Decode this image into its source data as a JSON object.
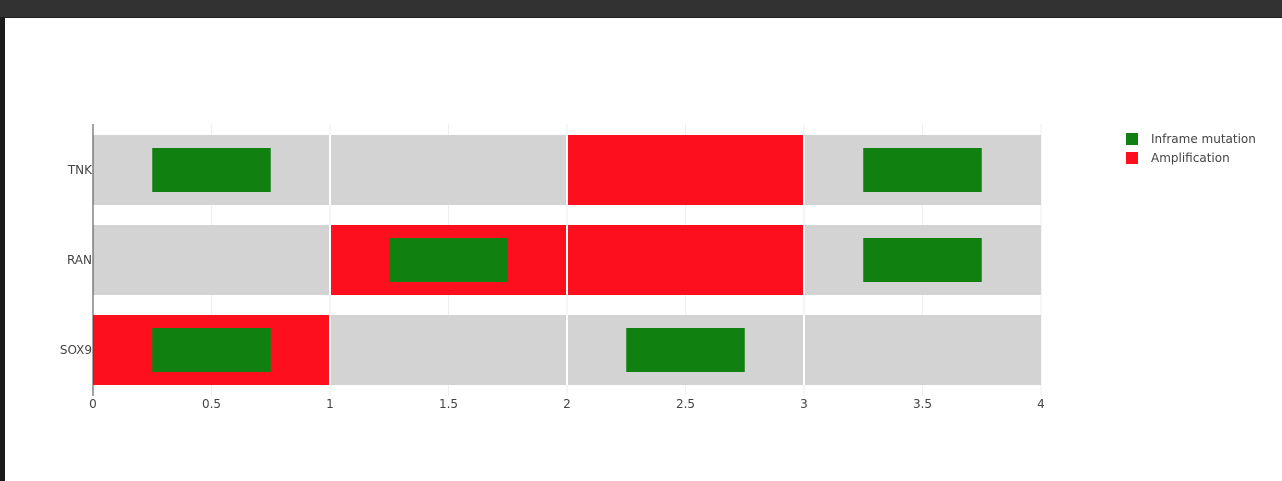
{
  "chart_data": {
    "type": "bar",
    "orientation": "horizontal",
    "title": "",
    "xlabel": "",
    "ylabel": "",
    "xlim": [
      0,
      4
    ],
    "x_ticks": [
      "0",
      "0.5",
      "1",
      "1.5",
      "2",
      "2.5",
      "3",
      "3.5",
      "4"
    ],
    "x_tick_values": [
      0,
      0.5,
      1,
      1.5,
      2,
      2.5,
      3,
      3.5,
      4
    ],
    "categories": [
      "TNK",
      "RAN",
      "SOX9"
    ],
    "sample_count": 4,
    "background_color": "#d3d3d3",
    "legend_position": "top-right",
    "grid": true,
    "series": [
      {
        "name": "Inframe mutation",
        "color": "#108010",
        "segments": [
          {
            "gene": "TNK",
            "start": 0.25,
            "end": 0.75
          },
          {
            "gene": "TNK",
            "start": 3.25,
            "end": 3.75
          },
          {
            "gene": "RAN",
            "start": 1.25,
            "end": 1.75
          },
          {
            "gene": "RAN",
            "start": 3.25,
            "end": 3.75
          },
          {
            "gene": "SOX9",
            "start": 0.25,
            "end": 0.75
          },
          {
            "gene": "SOX9",
            "start": 2.25,
            "end": 2.75
          }
        ]
      },
      {
        "name": "Amplification",
        "color": "#fe0f1e",
        "segments": [
          {
            "gene": "TNK",
            "start": 2,
            "end": 3
          },
          {
            "gene": "RAN",
            "start": 1,
            "end": 2
          },
          {
            "gene": "RAN",
            "start": 2,
            "end": 3
          },
          {
            "gene": "SOX9",
            "start": 0,
            "end": 1
          }
        ]
      }
    ]
  }
}
